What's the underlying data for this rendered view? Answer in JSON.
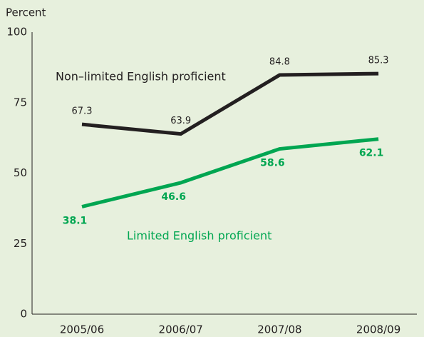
{
  "chart_data": {
    "type": "line",
    "y_axis_label": "Percent",
    "categories": [
      "2005/06",
      "2006/07",
      "2007/08",
      "2008/09"
    ],
    "series": [
      {
        "name": "Non–limited English proficient",
        "color": "#231f20",
        "values": [
          67.3,
          63.9,
          84.8,
          85.3
        ]
      },
      {
        "name": "Limited English proficient",
        "color": "#00a651",
        "values": [
          38.1,
          46.6,
          58.6,
          62.1
        ]
      }
    ],
    "ylim": [
      0,
      100
    ],
    "yticks": [
      0,
      25,
      50,
      75,
      100
    ],
    "grid": false
  }
}
